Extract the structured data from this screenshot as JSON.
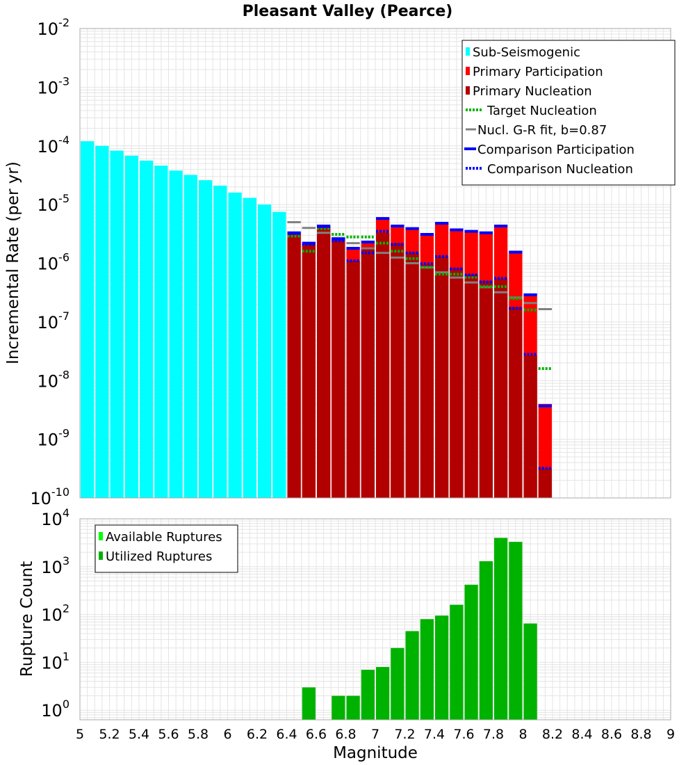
{
  "chart_data": {
    "type": "bar",
    "title": "Pleasant Valley (Pearce)",
    "xlabel": "Magnitude",
    "xlim": [
      5,
      9
    ],
    "x_ticks": [
      "5",
      "5.2",
      "5.4",
      "5.6",
      "5.8",
      "6",
      "6.2",
      "6.4",
      "6.6",
      "6.8",
      "7",
      "7.2",
      "7.4",
      "7.6",
      "7.8",
      "8",
      "8.2",
      "8.4",
      "8.6",
      "8.8",
      "9"
    ],
    "bin_width": 0.1,
    "colors": {
      "sub": "#00ffff",
      "part": "#ff0000",
      "nucl": "#b20000",
      "target": "#00b200",
      "gr": "#808080",
      "comp": "#0000ff",
      "avail": "#00ff00",
      "util": "#00b200",
      "grid": "#e4e4e4"
    },
    "rates": {
      "ylabel": "Incremental Rate (per yr)",
      "ylim_exp": [
        -10,
        -2
      ],
      "y_ticks": [
        {
          "exp": -2,
          "base": "10",
          "sup": "-2"
        },
        {
          "exp": -3,
          "base": "10",
          "sup": "-3"
        },
        {
          "exp": -4,
          "base": "10",
          "sup": "-4"
        },
        {
          "exp": -5,
          "base": "10",
          "sup": "-5"
        },
        {
          "exp": -6,
          "base": "10",
          "sup": "-6"
        },
        {
          "exp": -7,
          "base": "10",
          "sup": "-7"
        },
        {
          "exp": -8,
          "base": "10",
          "sup": "-8"
        },
        {
          "exp": -9,
          "base": "10",
          "sup": "-9"
        },
        {
          "exp": -10,
          "base": "10",
          "sup": "-10"
        }
      ],
      "legend": [
        {
          "label": "Sub-Seismogenic",
          "kind": "box",
          "color": "sub"
        },
        {
          "label": "Primary Participation",
          "kind": "box",
          "color": "part"
        },
        {
          "label": "Primary Nucleation",
          "kind": "box",
          "color": "nucl"
        },
        {
          "label": "Target Nucleation",
          "kind": "dot",
          "color": "target"
        },
        {
          "label": "Nucl. G-R fit, b=0.87",
          "kind": "line",
          "color": "gr"
        },
        {
          "label": "Comparison Participation",
          "kind": "thick",
          "color": "comp"
        },
        {
          "label": "Comparison Nucleation",
          "kind": "dot",
          "color": "comp"
        }
      ],
      "series": [
        {
          "name": "Sub-Seismogenic",
          "x": [
            5.05,
            5.15,
            5.25,
            5.35,
            5.45,
            5.55,
            5.65,
            5.75,
            5.85,
            5.95,
            6.05,
            6.15,
            6.25,
            6.35
          ],
          "values": [
            0.00012,
            0.0001,
            8.3e-05,
            6.8e-05,
            5.6e-05,
            4.6e-05,
            3.8e-05,
            3.2e-05,
            2.6e-05,
            2.1e-05,
            1.6e-05,
            1.3e-05,
            1e-05,
            7.5e-06
          ]
        },
        {
          "name": "Primary Participation",
          "x": [
            6.45,
            6.55,
            6.65,
            6.75,
            6.85,
            6.95,
            7.05,
            7.15,
            7.25,
            7.35,
            7.45,
            7.55,
            7.65,
            7.75,
            7.85,
            7.95,
            8.05,
            8.15
          ],
          "values": [
            3.3e-06,
            2.1e-06,
            4.3e-06,
            2.6e-06,
            1.8e-06,
            2.2e-06,
            5.8e-06,
            4.3e-06,
            3.8e-06,
            3e-06,
            4.7e-06,
            3.6e-06,
            3.4e-06,
            3.2e-06,
            4.2e-06,
            1.5e-06,
            2.8e-07,
            4e-09
          ]
        },
        {
          "name": "Primary Nucleation",
          "x": [
            6.45,
            6.55,
            6.65,
            6.75,
            6.85,
            6.95,
            7.05,
            7.15,
            7.25,
            7.35,
            7.45,
            7.55,
            7.65,
            7.75,
            7.85,
            7.95,
            8.05,
            8.15
          ],
          "values": [
            3.3e-06,
            2.1e-06,
            4.3e-06,
            2.6e-06,
            1.1e-06,
            1.9e-06,
            3.3e-06,
            2.2e-06,
            1.5e-06,
            9.5e-07,
            1.3e-06,
            8.2e-07,
            6.5e-07,
            5e-07,
            5.5e-07,
            1.8e-07,
            2.7e-08,
            3.2e-10
          ]
        },
        {
          "name": "Target Nucleation",
          "x": [
            6.45,
            6.55,
            6.65,
            6.75,
            6.85,
            6.95,
            7.05,
            7.15,
            7.25,
            7.35,
            7.45,
            7.55,
            7.65,
            7.75,
            7.85,
            7.95,
            8.05,
            8.15
          ],
          "values": [
            2.9e-06,
            1.6e-06,
            3.9e-06,
            3.1e-06,
            2.8e-06,
            2.8e-06,
            2.2e-06,
            1.6e-06,
            1.2e-06,
            8.5e-07,
            6.5e-07,
            6.5e-07,
            5.8e-07,
            4e-07,
            4e-07,
            2.5e-07,
            1.6e-07,
            1.6e-08
          ]
        },
        {
          "name": "Nucl. G-R fit, b=0.87",
          "x": [
            6.45,
            6.55,
            6.65,
            6.75,
            6.85,
            6.95,
            7.05,
            7.15,
            7.25,
            7.35,
            7.45,
            7.55,
            7.65,
            7.75,
            7.85,
            7.95,
            8.05,
            8.15
          ],
          "values": [
            5e-06,
            4e-06,
            3.3e-06,
            2.7e-06,
            2.2e-06,
            1.8e-06,
            1.5e-06,
            1.25e-06,
            1e-06,
            8.5e-07,
            7e-07,
            5.7e-07,
            4.7e-07,
            3.9e-07,
            3.2e-07,
            2.6e-07,
            2.1e-07,
            1.65e-07
          ]
        },
        {
          "name": "Comparison Participation",
          "x": [
            6.45,
            6.55,
            6.65,
            6.75,
            6.85,
            6.95,
            7.05,
            7.15,
            7.25,
            7.35,
            7.45,
            7.55,
            7.65,
            7.75,
            7.85,
            7.95,
            8.05,
            8.15
          ],
          "values": [
            3.3e-06,
            2.2e-06,
            4.3e-06,
            2.6e-06,
            1.8e-06,
            2.3e-06,
            5.8e-06,
            4.3e-06,
            3.9e-06,
            3.1e-06,
            4.8e-06,
            3.7e-06,
            3.5e-06,
            3.3e-06,
            4.3e-06,
            1.55e-06,
            2.9e-07,
            3.7e-09
          ]
        },
        {
          "name": "Comparison Nucleation",
          "x": [
            6.45,
            6.55,
            6.65,
            6.75,
            6.85,
            6.95,
            7.05,
            7.15,
            7.25,
            7.35,
            7.45,
            7.55,
            7.65,
            7.75,
            7.85,
            7.95,
            8.05,
            8.15
          ],
          "values": [
            3.2e-06,
            2.1e-06,
            4.2e-06,
            2.4e-06,
            1.1e-06,
            1.5e-06,
            3.5e-06,
            2.1e-06,
            1.5e-06,
            9.8e-07,
            1.3e-06,
            8e-07,
            6.3e-07,
            4.8e-07,
            5.5e-07,
            1.7e-07,
            2.8e-08,
            3.2e-10
          ]
        }
      ]
    },
    "counts": {
      "ylabel": "Rupture Count",
      "ylim_exp": [
        -0.2,
        4
      ],
      "y_ticks": [
        {
          "exp": 4,
          "base": "10",
          "sup": "4"
        },
        {
          "exp": 3,
          "base": "10",
          "sup": "3"
        },
        {
          "exp": 2,
          "base": "10",
          "sup": "2"
        },
        {
          "exp": 1,
          "base": "10",
          "sup": "1"
        },
        {
          "exp": 0,
          "base": "10",
          "sup": "0"
        }
      ],
      "legend": [
        {
          "label": "Available Ruptures",
          "kind": "box",
          "color": "avail"
        },
        {
          "label": "Utilized Ruptures",
          "kind": "box",
          "color": "util"
        }
      ],
      "series": [
        {
          "name": "Utilized Ruptures",
          "x": [
            6.55,
            6.75,
            6.85,
            6.95,
            7.05,
            7.15,
            7.25,
            7.35,
            7.45,
            7.55,
            7.65,
            7.75,
            7.85,
            7.95,
            8.05
          ],
          "values": [
            3,
            2,
            2,
            7,
            8,
            20,
            45,
            80,
            95,
            160,
            420,
            1300,
            4000,
            3300,
            65
          ]
        }
      ]
    }
  }
}
